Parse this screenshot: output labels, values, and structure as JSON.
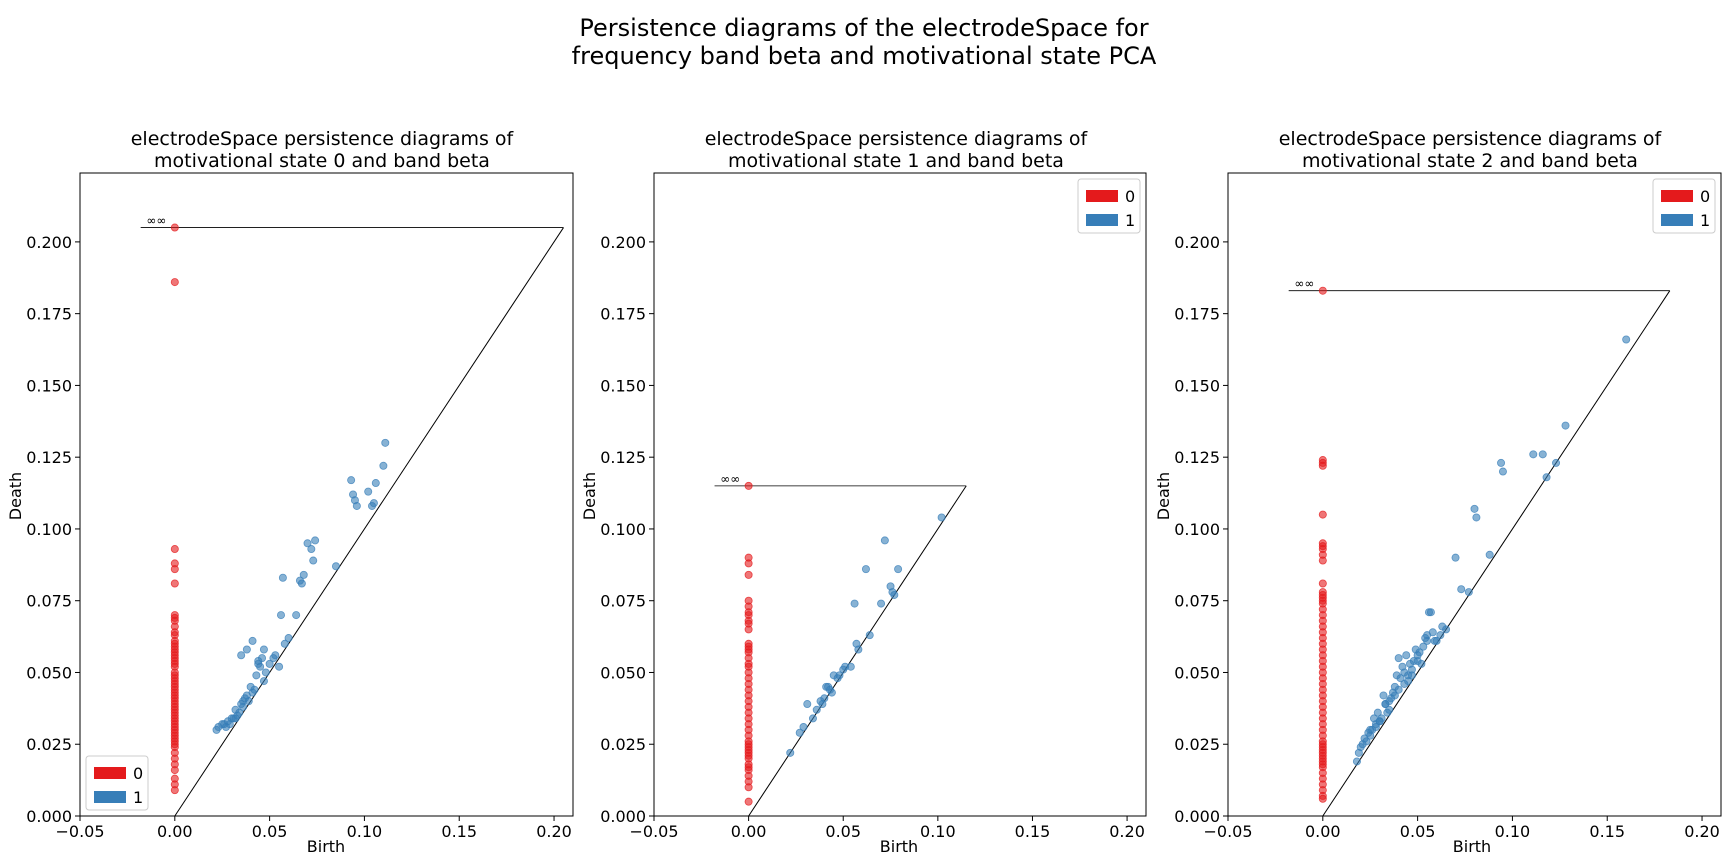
{
  "figure": {
    "suptitle_line1": "Persistence diagrams of the electrodeSpace for",
    "suptitle_line2": "frequency band beta and motivational state PCA"
  },
  "colors": {
    "h0": "#e41a1c",
    "h1": "#377eb8",
    "axis": "#000000"
  },
  "chart_data": [
    {
      "type": "scatter",
      "title_line1": "electrodeSpace persistence diagrams of",
      "title_line2": "motivational state 0 and band beta",
      "xlabel": "Birth",
      "ylabel": "Death",
      "xlim": [
        -0.05,
        0.21
      ],
      "ylim": [
        0.0,
        0.224
      ],
      "xticks": [
        "−0.05",
        "0.00",
        "0.05",
        "0.10",
        "0.15",
        "0.20"
      ],
      "yticks": [
        "0.000",
        "0.025",
        "0.050",
        "0.075",
        "0.100",
        "0.125",
        "0.150",
        "0.175",
        "0.200"
      ],
      "grid": false,
      "legend_position": "lower-left",
      "legend": [
        "0",
        "1"
      ],
      "infinity_label": "∞",
      "infinity_level": 0.205,
      "diagonal_max": 0.205,
      "series": [
        {
          "name": "0",
          "x": [
            0,
            0,
            0,
            0,
            0,
            0,
            0,
            0,
            0,
            0,
            0,
            0,
            0,
            0,
            0,
            0,
            0,
            0,
            0,
            0,
            0,
            0,
            0,
            0,
            0,
            0,
            0,
            0,
            0,
            0,
            0,
            0,
            0,
            0,
            0,
            0,
            0,
            0,
            0,
            0,
            0,
            0,
            0,
            0,
            0,
            0,
            0,
            0,
            0,
            0,
            0,
            0,
            0,
            0,
            0,
            0
          ],
          "y": [
            0.205,
            0.186,
            0.093,
            0.088,
            0.086,
            0.081,
            0.07,
            0.069,
            0.068,
            0.066,
            0.064,
            0.063,
            0.061,
            0.06,
            0.059,
            0.058,
            0.057,
            0.056,
            0.055,
            0.054,
            0.053,
            0.052,
            0.05,
            0.049,
            0.048,
            0.047,
            0.046,
            0.045,
            0.044,
            0.043,
            0.042,
            0.041,
            0.04,
            0.039,
            0.038,
            0.037,
            0.036,
            0.035,
            0.034,
            0.033,
            0.032,
            0.031,
            0.03,
            0.029,
            0.028,
            0.027,
            0.026,
            0.025,
            0.024,
            0.022,
            0.02,
            0.018,
            0.016,
            0.013,
            0.011,
            0.009
          ]
        },
        {
          "name": "1",
          "x": [
            0.111,
            0.11,
            0.106,
            0.105,
            0.104,
            0.102,
            0.096,
            0.095,
            0.094,
            0.093,
            0.085,
            0.074,
            0.073,
            0.072,
            0.07,
            0.068,
            0.067,
            0.066,
            0.064,
            0.06,
            0.058,
            0.057,
            0.056,
            0.055,
            0.053,
            0.052,
            0.05,
            0.048,
            0.047,
            0.046,
            0.045,
            0.044,
            0.043,
            0.042,
            0.041,
            0.04,
            0.039,
            0.038,
            0.037,
            0.036,
            0.035,
            0.034,
            0.033,
            0.032,
            0.031,
            0.03,
            0.029,
            0.028,
            0.027,
            0.026,
            0.025,
            0.023,
            0.022,
            0.035,
            0.038,
            0.041,
            0.044,
            0.047,
            0.032,
            0.036
          ],
          "y": [
            0.13,
            0.122,
            0.116,
            0.109,
            0.108,
            0.113,
            0.108,
            0.11,
            0.112,
            0.117,
            0.087,
            0.096,
            0.089,
            0.093,
            0.095,
            0.084,
            0.081,
            0.082,
            0.07,
            0.062,
            0.06,
            0.083,
            0.07,
            0.052,
            0.056,
            0.055,
            0.053,
            0.05,
            0.047,
            0.055,
            0.052,
            0.053,
            0.049,
            0.044,
            0.043,
            0.045,
            0.04,
            0.042,
            0.041,
            0.04,
            0.039,
            0.036,
            0.035,
            0.037,
            0.034,
            0.034,
            0.032,
            0.033,
            0.031,
            0.032,
            0.032,
            0.031,
            0.03,
            0.056,
            0.058,
            0.061,
            0.054,
            0.058,
            0.034,
            0.038
          ]
        }
      ]
    },
    {
      "type": "scatter",
      "title_line1": "electrodeSpace persistence diagrams of",
      "title_line2": "motivational state 1 and band beta",
      "xlabel": "Birth",
      "ylabel": "Death",
      "xlim": [
        -0.05,
        0.21
      ],
      "ylim": [
        0.0,
        0.224
      ],
      "xticks": [
        "−0.05",
        "0.00",
        "0.05",
        "0.10",
        "0.15",
        "0.20"
      ],
      "yticks": [
        "0.000",
        "0.025",
        "0.050",
        "0.075",
        "0.100",
        "0.125",
        "0.150",
        "0.175",
        "0.200"
      ],
      "grid": false,
      "legend_position": "upper-right",
      "legend": [
        "0",
        "1"
      ],
      "infinity_label": "∞",
      "infinity_level": 0.115,
      "diagonal_max": 0.115,
      "series": [
        {
          "name": "0",
          "x": [
            0,
            0,
            0,
            0,
            0,
            0,
            0,
            0,
            0,
            0,
            0,
            0,
            0,
            0,
            0,
            0,
            0,
            0,
            0,
            0,
            0,
            0,
            0,
            0,
            0,
            0,
            0,
            0,
            0,
            0,
            0,
            0,
            0,
            0,
            0,
            0,
            0,
            0,
            0,
            0,
            0,
            0,
            0,
            0
          ],
          "y": [
            0.115,
            0.09,
            0.088,
            0.084,
            0.075,
            0.073,
            0.071,
            0.07,
            0.068,
            0.067,
            0.065,
            0.06,
            0.059,
            0.058,
            0.057,
            0.055,
            0.053,
            0.052,
            0.05,
            0.048,
            0.046,
            0.044,
            0.042,
            0.04,
            0.038,
            0.036,
            0.034,
            0.032,
            0.03,
            0.028,
            0.026,
            0.025,
            0.024,
            0.023,
            0.022,
            0.021,
            0.02,
            0.018,
            0.017,
            0.016,
            0.014,
            0.012,
            0.01,
            0.005
          ]
        },
        {
          "name": "1",
          "x": [
            0.102,
            0.079,
            0.077,
            0.076,
            0.075,
            0.072,
            0.07,
            0.064,
            0.062,
            0.058,
            0.057,
            0.056,
            0.054,
            0.051,
            0.05,
            0.048,
            0.047,
            0.045,
            0.044,
            0.043,
            0.042,
            0.041,
            0.04,
            0.039,
            0.038,
            0.036,
            0.034,
            0.031,
            0.029,
            0.027,
            0.022
          ],
          "y": [
            0.104,
            0.086,
            0.077,
            0.078,
            0.08,
            0.096,
            0.074,
            0.063,
            0.086,
            0.058,
            0.06,
            0.074,
            0.052,
            0.052,
            0.051,
            0.049,
            0.048,
            0.049,
            0.043,
            0.044,
            0.045,
            0.045,
            0.041,
            0.039,
            0.04,
            0.037,
            0.034,
            0.039,
            0.031,
            0.029,
            0.022
          ]
        }
      ]
    },
    {
      "type": "scatter",
      "title_line1": "electrodeSpace persistence diagrams of",
      "title_line2": "motivational state 2 and band beta",
      "xlabel": "Birth",
      "ylabel": "Death",
      "xlim": [
        -0.05,
        0.21
      ],
      "ylim": [
        0.0,
        0.224
      ],
      "xticks": [
        "−0.05",
        "0.00",
        "0.05",
        "0.10",
        "0.15",
        "0.20"
      ],
      "yticks": [
        "0.000",
        "0.025",
        "0.050",
        "0.075",
        "0.100",
        "0.125",
        "0.150",
        "0.175",
        "0.200"
      ],
      "grid": false,
      "legend_position": "upper-right",
      "legend": [
        "0",
        "1"
      ],
      "infinity_label": "∞",
      "infinity_level": 0.183,
      "diagonal_max": 0.183,
      "series": [
        {
          "name": "0",
          "x": [
            0,
            0,
            0,
            0,
            0,
            0,
            0,
            0,
            0,
            0,
            0,
            0,
            0,
            0,
            0,
            0,
            0,
            0,
            0,
            0,
            0,
            0,
            0,
            0,
            0,
            0,
            0,
            0,
            0,
            0,
            0,
            0,
            0,
            0,
            0,
            0,
            0,
            0,
            0,
            0,
            0,
            0,
            0,
            0,
            0,
            0,
            0,
            0,
            0,
            0,
            0,
            0,
            0,
            0,
            0
          ],
          "y": [
            0.183,
            0.124,
            0.123,
            0.122,
            0.105,
            0.095,
            0.094,
            0.093,
            0.091,
            0.089,
            0.081,
            0.078,
            0.077,
            0.076,
            0.075,
            0.074,
            0.072,
            0.07,
            0.068,
            0.066,
            0.064,
            0.062,
            0.06,
            0.058,
            0.056,
            0.054,
            0.052,
            0.05,
            0.048,
            0.046,
            0.044,
            0.042,
            0.04,
            0.038,
            0.036,
            0.034,
            0.032,
            0.03,
            0.028,
            0.026,
            0.025,
            0.024,
            0.023,
            0.022,
            0.021,
            0.02,
            0.019,
            0.018,
            0.017,
            0.015,
            0.013,
            0.011,
            0.009,
            0.007,
            0.006
          ]
        },
        {
          "name": "1",
          "x": [
            0.16,
            0.128,
            0.123,
            0.118,
            0.116,
            0.111,
            0.095,
            0.094,
            0.088,
            0.081,
            0.08,
            0.077,
            0.073,
            0.07,
            0.065,
            0.063,
            0.062,
            0.06,
            0.059,
            0.058,
            0.057,
            0.056,
            0.055,
            0.054,
            0.053,
            0.052,
            0.051,
            0.05,
            0.049,
            0.048,
            0.047,
            0.046,
            0.045,
            0.044,
            0.043,
            0.042,
            0.041,
            0.04,
            0.039,
            0.038,
            0.037,
            0.036,
            0.035,
            0.034,
            0.033,
            0.032,
            0.031,
            0.03,
            0.029,
            0.028,
            0.027,
            0.026,
            0.025,
            0.024,
            0.023,
            0.022,
            0.021,
            0.02,
            0.019,
            0.018,
            0.055,
            0.05,
            0.045,
            0.04,
            0.035,
            0.03,
            0.047,
            0.043,
            0.038,
            0.033,
            0.028,
            0.025
          ],
          "y": [
            0.166,
            0.136,
            0.123,
            0.118,
            0.126,
            0.126,
            0.12,
            0.123,
            0.091,
            0.104,
            0.107,
            0.078,
            0.079,
            0.09,
            0.065,
            0.066,
            0.063,
            0.061,
            0.061,
            0.064,
            0.071,
            0.071,
            0.061,
            0.062,
            0.059,
            0.053,
            0.057,
            0.056,
            0.058,
            0.054,
            0.051,
            0.053,
            0.049,
            0.056,
            0.05,
            0.052,
            0.048,
            0.055,
            0.049,
            0.045,
            0.043,
            0.041,
            0.04,
            0.036,
            0.039,
            0.042,
            0.034,
            0.033,
            0.036,
            0.032,
            0.034,
            0.03,
            0.028,
            0.029,
            0.026,
            0.027,
            0.025,
            0.024,
            0.022,
            0.019,
            0.063,
            0.054,
            0.047,
            0.044,
            0.037,
            0.033,
            0.049,
            0.046,
            0.042,
            0.039,
            0.031,
            0.03
          ]
        }
      ]
    }
  ]
}
